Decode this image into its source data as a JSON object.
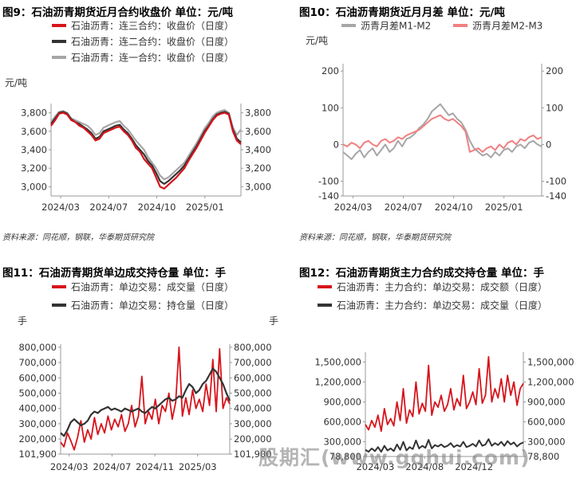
{
  "watermark": "股期汇(www.gqhui.com)",
  "charts": [
    {
      "id": "fig9",
      "title": "图9：石油沥青期货近月合约收盘价  单位：元/吨",
      "source": "资料来源：同花顺，钢联，华泰期货研究院",
      "unit_left": "元/吨",
      "unit_right": "",
      "ylim_left": [
        2900,
        3900
      ],
      "yticks_left": [
        "3,000",
        "3,200",
        "3,400",
        "3,600",
        "3,800"
      ],
      "yvals_left": [
        3000,
        3200,
        3400,
        3600,
        3800
      ],
      "ylim_right": [
        2900,
        3900
      ],
      "yticks_right": [
        "3,000",
        "3,200",
        "3,400",
        "3,600",
        "3,800"
      ],
      "yvals_right": [
        3000,
        3200,
        3400,
        3600,
        3800
      ],
      "xticks": [
        "2024/03",
        "2024/07",
        "2024/10",
        "2025/01"
      ],
      "chart_data": {
        "type": "line",
        "xlabel": "",
        "ylabel": "元/吨",
        "ylim": [
          2900,
          3900
        ],
        "series": [
          {
            "name": "石油沥青：连三合约：收盘价（日度）",
            "color": "#d7141b",
            "width": 2.2,
            "axis": "left",
            "values": [
              3660,
              3720,
              3790,
              3800,
              3780,
              3720,
              3700,
              3660,
              3640,
              3600,
              3560,
              3500,
              3520,
              3580,
              3600,
              3620,
              3640,
              3650,
              3600,
              3560,
              3500,
              3420,
              3380,
              3300,
              3250,
              3200,
              3100,
              3000,
              2980,
              3020,
              3060,
              3100,
              3150,
              3200,
              3280,
              3350,
              3420,
              3500,
              3580,
              3650,
              3720,
              3770,
              3790,
              3800,
              3780,
              3600,
              3500,
              3460
            ]
          },
          {
            "name": "石油沥青：连二合约：收盘价（日度）",
            "color": "#333333",
            "width": 2.2,
            "axis": "left",
            "values": [
              3680,
              3740,
              3800,
              3810,
              3790,
              3730,
              3700,
              3680,
              3650,
              3620,
              3580,
              3520,
              3540,
              3600,
              3620,
              3640,
              3660,
              3670,
              3620,
              3580,
              3520,
              3450,
              3400,
              3350,
              3280,
              3230,
              3150,
              3060,
              3030,
              3060,
              3100,
              3140,
              3180,
              3230,
              3300,
              3370,
              3440,
              3520,
              3600,
              3660,
              3730,
              3780,
              3800,
              3810,
              3790,
              3620,
              3520,
              3480
            ]
          },
          {
            "name": "石油沥青：连一合约：收盘价（日度）",
            "color": "#a6a6a6",
            "width": 2.2,
            "axis": "left",
            "values": [
              3700,
              3760,
              3810,
              3820,
              3800,
              3740,
              3720,
              3700,
              3680,
              3660,
              3620,
              3560,
              3580,
              3640,
              3660,
              3680,
              3700,
              3710,
              3660,
              3620,
              3560,
              3500,
              3450,
              3400,
              3320,
              3260,
              3200,
              3120,
              3080,
              3100,
              3140,
              3180,
              3220,
              3260,
              3330,
              3400,
              3470,
              3550,
              3630,
              3690,
              3760,
              3800,
              3820,
              3830,
              3800,
              3640,
              3560,
              3620
            ]
          }
        ]
      }
    },
    {
      "id": "fig10",
      "title": "图10：石油沥青期货近月月差  单位：元/吨",
      "source": "资料来源：同花顺，钢联，华泰期货研究院",
      "unit_left": "元/吨",
      "unit_right": "",
      "ylim_left": [
        -140,
        220
      ],
      "yticks_left": [
        "200",
        "100",
        "0",
        "-100",
        "-140"
      ],
      "yvals_left": [
        200,
        100,
        0,
        -100,
        -140
      ],
      "ylim_right": [
        -140,
        220
      ],
      "yticks_right": [
        "200",
        "100",
        "0",
        "-100",
        "-140"
      ],
      "yvals_right": [
        200,
        100,
        0,
        -100,
        -140
      ],
      "xticks": [
        "2024/03",
        "2024/07",
        "2024/10",
        "2025/01"
      ],
      "chart_data": {
        "type": "line",
        "xlabel": "",
        "ylabel": "元/吨",
        "ylim": [
          -140,
          220
        ],
        "series": [
          {
            "name": "沥青月差M1-M2",
            "color": "#a6a6a6",
            "width": 2.0,
            "axis": "left",
            "values": [
              -20,
              -30,
              -40,
              -25,
              -15,
              -35,
              -20,
              -10,
              -30,
              -15,
              0,
              -20,
              -10,
              10,
              -5,
              15,
              20,
              30,
              45,
              55,
              70,
              90,
              100,
              110,
              95,
              80,
              85,
              70,
              60,
              40,
              10,
              -10,
              -20,
              -30,
              -25,
              -35,
              -20,
              -30,
              -15,
              -10,
              -20,
              -5,
              0,
              -10,
              5,
              10,
              0,
              -5
            ]
          },
          {
            "name": "沥青月差M2-M3",
            "color": "#f08080",
            "width": 2.0,
            "axis": "left",
            "values": [
              0,
              -5,
              5,
              0,
              -10,
              5,
              10,
              0,
              -5,
              10,
              15,
              5,
              10,
              20,
              15,
              25,
              30,
              35,
              40,
              50,
              60,
              70,
              75,
              80,
              70,
              65,
              70,
              60,
              50,
              35,
              -20,
              -15,
              -10,
              -20,
              -10,
              -5,
              -15,
              0,
              -10,
              5,
              10,
              0,
              15,
              10,
              20,
              25,
              15,
              20
            ]
          }
        ]
      }
    },
    {
      "id": "fig11",
      "title": "图11：石油沥青期货单边成交持仓量  单位：手",
      "source": "",
      "unit_left": "手",
      "unit_right": "手",
      "ylim_left": [
        101900,
        820000
      ],
      "yticks_left": [
        "800,000",
        "700,000",
        "600,000",
        "500,000",
        "400,000",
        "300,000",
        "200,000",
        "101,900"
      ],
      "yvals_left": [
        800000,
        700000,
        600000,
        500000,
        400000,
        300000,
        200000,
        101900
      ],
      "ylim_right": [
        101900,
        820000
      ],
      "yticks_right": [
        "800,000",
        "700,000",
        "600,000",
        "500,000",
        "400,000",
        "300,000",
        "200,000",
        "101,900"
      ],
      "yvals_right": [
        800000,
        700000,
        600000,
        500000,
        400000,
        300000,
        200000,
        101900
      ],
      "xticks": [
        "2024/03",
        "2024/07",
        "2024/11",
        "2025/03"
      ],
      "chart_data": {
        "type": "line",
        "xlabel": "",
        "ylabel": "手",
        "ylim": [
          101900,
          820000
        ],
        "series": [
          {
            "name": "石油沥青：单边交易：成交量（日度）",
            "color": "#d7141b",
            "width": 1.8,
            "axis": "left",
            "values": [
              180000,
              150000,
              240000,
              190000,
              130000,
              210000,
              320000,
              180000,
              260000,
              200000,
              340000,
              230000,
              300000,
              240000,
              350000,
              260000,
              330000,
              280000,
              360000,
              250000,
              300000,
              420000,
              280000,
              350000,
              610000,
              300000,
              380000,
              330000,
              460000,
              300000,
              420000,
              380000,
              500000,
              330000,
              440000,
              800000,
              350000,
              470000,
              360000,
              520000,
              400000,
              460000,
              380000,
              560000,
              420000,
              720000,
              380000,
              790000,
              400000,
              470000,
              430000
            ]
          },
          {
            "name": "石油沥青：单边交易：持仓量（日度）",
            "color": "#333333",
            "width": 2.2,
            "axis": "left",
            "values": [
              240000,
              220000,
              260000,
              310000,
              330000,
              310000,
              290000,
              300000,
              320000,
              360000,
              380000,
              370000,
              390000,
              400000,
              410000,
              390000,
              400000,
              390000,
              380000,
              400000,
              390000,
              380000,
              390000,
              400000,
              380000,
              370000,
              390000,
              410000,
              400000,
              420000,
              440000,
              460000,
              470000,
              450000,
              460000,
              480000,
              470000,
              520000,
              560000,
              540000,
              500000,
              520000,
              560000,
              580000,
              620000,
              660000,
              640000,
              600000,
              560000,
              500000,
              450000
            ]
          }
        ]
      }
    },
    {
      "id": "fig12",
      "title": "图12：石油沥青期货主力合约成交持仓量  单位：手",
      "source": "",
      "unit_left": "",
      "unit_right": "",
      "ylim_left": [
        78800,
        1650000
      ],
      "yticks_left": [
        "1,500,000",
        "1,200,000",
        "900,000",
        "600,000",
        "300,000",
        "78,800"
      ],
      "yvals_left": [
        1500000,
        1200000,
        900000,
        600000,
        300000,
        78800
      ],
      "ylim_right": [
        78800,
        1650000
      ],
      "yticks_right": [
        "1,500,000",
        "1,200,000",
        "900,000",
        "600,000",
        "300,000",
        "78,800"
      ],
      "yvals_right": [
        1500000,
        1200000,
        900000,
        600000,
        300000,
        78800
      ],
      "xticks": [
        "2024/03",
        "2024/08",
        "2024/12"
      ],
      "chart_data": {
        "type": "line",
        "xlabel": "",
        "ylabel": "",
        "ylim": [
          78800,
          1650000
        ],
        "series": [
          {
            "name": "石油沥青：主力合约：单边交易：成交额（日度）",
            "color": "#d7141b",
            "width": 1.8,
            "axis": "left",
            "values": [
              560000,
              480000,
              620000,
              520000,
              700000,
              460000,
              800000,
              560000,
              650000,
              540000,
              900000,
              620000,
              1100000,
              580000,
              780000,
              680000,
              1200000,
              720000,
              880000,
              760000,
              1450000,
              700000,
              900000,
              820000,
              1000000,
              760000,
              860000,
              1100000,
              780000,
              950000,
              840000,
              1300000,
              800000,
              900000,
              1050000,
              860000,
              1400000,
              880000,
              1000000,
              1580000,
              900000,
              1100000,
              960000,
              1250000,
              900000,
              1300000,
              1000000,
              1200000,
              850000,
              1100000,
              1180000
            ]
          },
          {
            "name": "石油沥青：主力合约：单边交易：成交量（日度）",
            "color": "#333333",
            "width": 2.0,
            "axis": "left",
            "values": [
              180000,
              150000,
              200000,
              160000,
              220000,
              150000,
              240000,
              170000,
              200000,
              160000,
              260000,
              180000,
              300000,
              170000,
              220000,
              190000,
              320000,
              200000,
              240000,
              210000,
              330000,
              200000,
              250000,
              230000,
              260000,
              220000,
              240000,
              280000,
              220000,
              250000,
              230000,
              300000,
              220000,
              240000,
              270000,
              230000,
              320000,
              240000,
              260000,
              340000,
              240000,
              280000,
              250000,
              300000,
              240000,
              310000,
              260000,
              290000,
              230000,
              270000,
              290000
            ]
          }
        ]
      }
    }
  ]
}
